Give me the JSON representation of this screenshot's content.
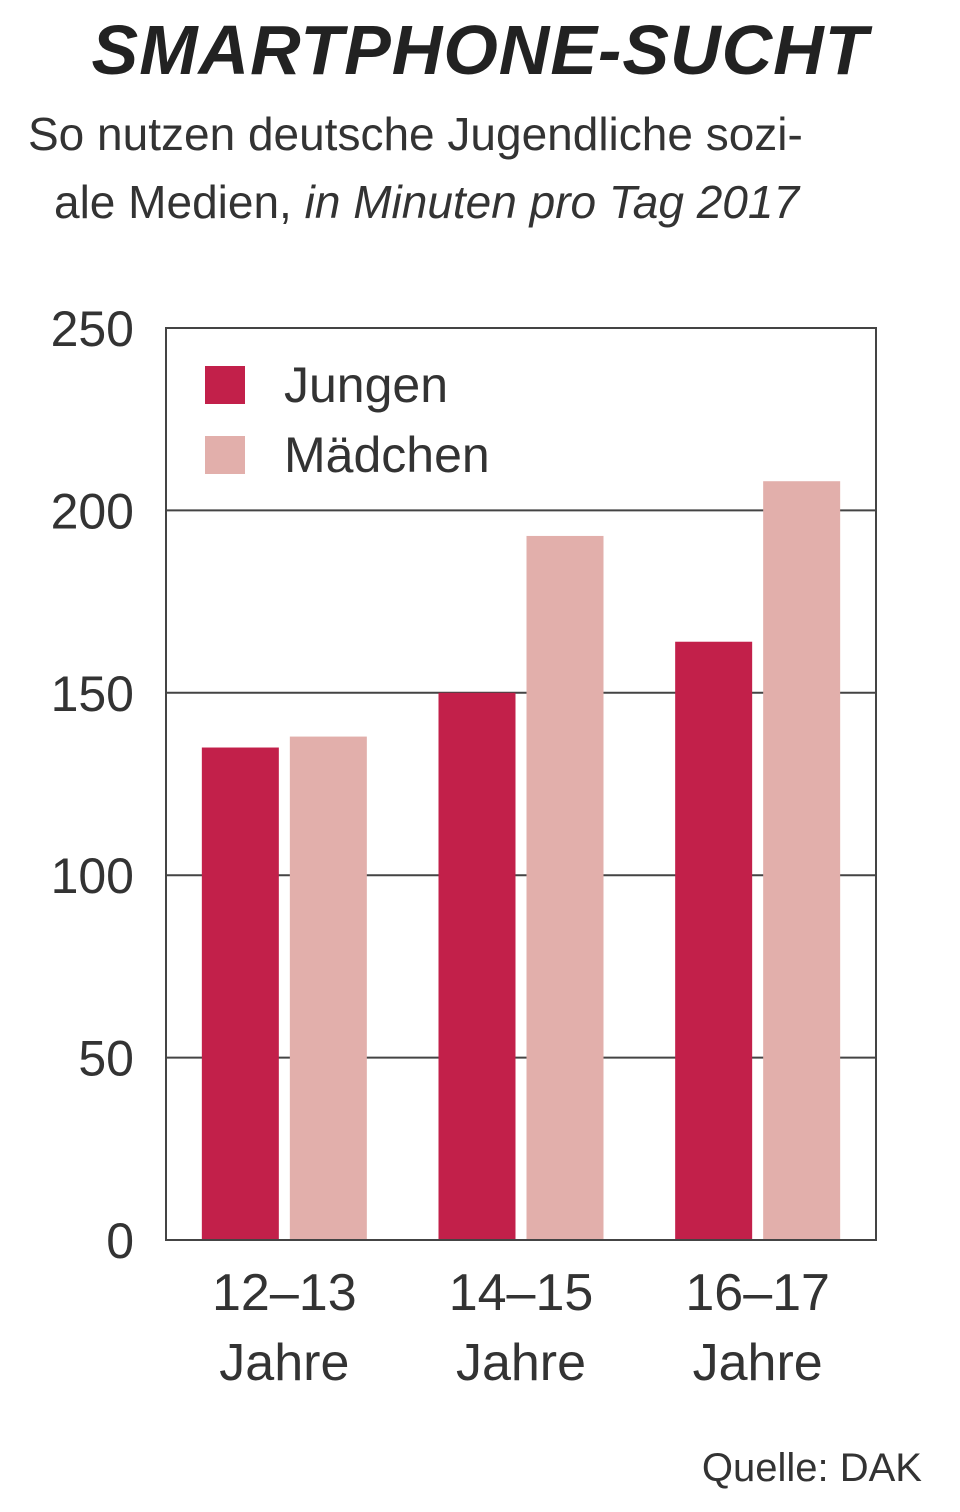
{
  "chart_data": {
    "type": "bar",
    "title": "SMARTPHONE-SUCHT",
    "subtitle_line1": "So nutzen deutsche Jugendliche sozi-",
    "subtitle_line2": "ale Medien,",
    "subtitle_italic": "in Minuten pro Tag 2017",
    "categories": [
      [
        "12–13",
        "Jahre"
      ],
      [
        "14–15",
        "Jahre"
      ],
      [
        "16–17",
        "Jahre"
      ]
    ],
    "series": [
      {
        "name": "Jungen",
        "color": "#c2204a",
        "values": [
          135,
          150,
          164
        ]
      },
      {
        "name": "Mädchen",
        "color": "#e2afab",
        "values": [
          138,
          193,
          208
        ]
      }
    ],
    "yticks": [
      "0",
      "50",
      "100",
      "150",
      "200",
      "250"
    ],
    "ylim": [
      0,
      250
    ],
    "grid": true,
    "legend": "top-left",
    "source": "Quelle: DAK"
  }
}
